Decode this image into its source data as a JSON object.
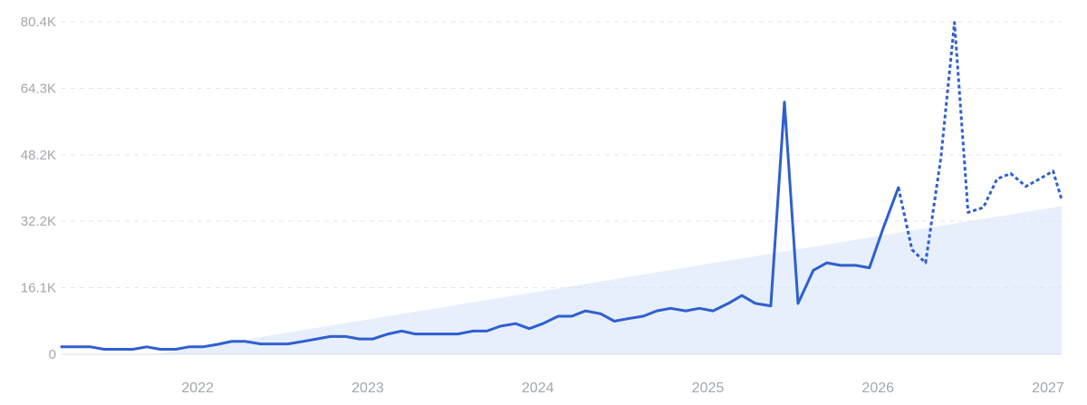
{
  "chart_data": {
    "type": "line",
    "title": "",
    "xlabel": "",
    "ylabel": "",
    "grid": true,
    "legend": "none",
    "colors": {
      "line": "#2f5fd0",
      "trend_fill": "#e6effb",
      "grid": "#e3e6ea",
      "tick_text": "#a3a7ad"
    },
    "ylim": [
      0,
      80400
    ],
    "xlim": [
      2021.2,
      2027.08
    ],
    "y_ticks": [
      {
        "value": 0,
        "label": "0"
      },
      {
        "value": 16100,
        "label": "16.1K"
      },
      {
        "value": 32200,
        "label": "32.2K"
      },
      {
        "value": 48200,
        "label": "48.2K"
      },
      {
        "value": 64300,
        "label": "64.3K"
      },
      {
        "value": 80400,
        "label": "80.4K"
      }
    ],
    "x_ticks": [
      {
        "value": 2022,
        "label": "2022"
      },
      {
        "value": 2023,
        "label": "2023"
      },
      {
        "value": 2024,
        "label": "2024"
      },
      {
        "value": 2025,
        "label": "2025"
      },
      {
        "value": 2026,
        "label": "2026"
      },
      {
        "value": 2027,
        "label": "2027"
      }
    ],
    "series": [
      {
        "style": "solid",
        "x": [
          2021.2,
          2021.28,
          2021.37,
          2021.45,
          2021.53,
          2021.62,
          2021.7,
          2021.78,
          2021.87,
          2021.95,
          2022.03,
          2022.12,
          2022.2,
          2022.28,
          2022.37,
          2022.45,
          2022.53,
          2022.62,
          2022.7,
          2022.78,
          2022.87,
          2022.95,
          2023.03,
          2023.12,
          2023.2,
          2023.28,
          2023.37,
          2023.45,
          2023.53,
          2023.62,
          2023.7,
          2023.78,
          2023.87,
          2023.95,
          2024.03,
          2024.12,
          2024.2,
          2024.28,
          2024.37,
          2024.45,
          2024.53,
          2024.62,
          2024.7,
          2024.78,
          2024.87,
          2024.95,
          2025.03,
          2025.12,
          2025.2,
          2025.28,
          2025.37,
          2025.45,
          2025.53,
          2025.62,
          2025.7,
          2025.78,
          2025.87,
          2025.95,
          2026.03,
          2026.12
        ],
        "values": [
          1800,
          1800,
          1800,
          1200,
          1200,
          1200,
          1800,
          1200,
          1200,
          1800,
          1800,
          2400,
          3100,
          3100,
          2500,
          2500,
          2500,
          3100,
          3700,
          4300,
          4300,
          3700,
          3700,
          4900,
          5600,
          4900,
          4900,
          4900,
          4900,
          5600,
          5600,
          6800,
          7400,
          6200,
          7400,
          9200,
          9200,
          10500,
          9800,
          8000,
          8600,
          9200,
          10500,
          11100,
          10500,
          11100,
          10500,
          12300,
          14200,
          12300,
          11700,
          61000,
          12300,
          20300,
          22100,
          21500,
          21500,
          20900,
          30400,
          40300
        ]
      },
      {
        "style": "dotted",
        "x": [
          2026.12,
          2026.2,
          2026.28,
          2026.37,
          2026.45,
          2026.53,
          2026.62,
          2026.7,
          2026.78,
          2026.87,
          2026.95,
          2027.03,
          2027.08
        ],
        "values": [
          40300,
          25300,
          22100,
          47500,
          80200,
          34300,
          35500,
          42400,
          43700,
          40600,
          42400,
          44300,
          37400
        ]
      }
    ],
    "trend_area": {
      "x": [
        2021.75,
        2027.08
      ],
      "values": [
        0,
        35800
      ]
    }
  }
}
